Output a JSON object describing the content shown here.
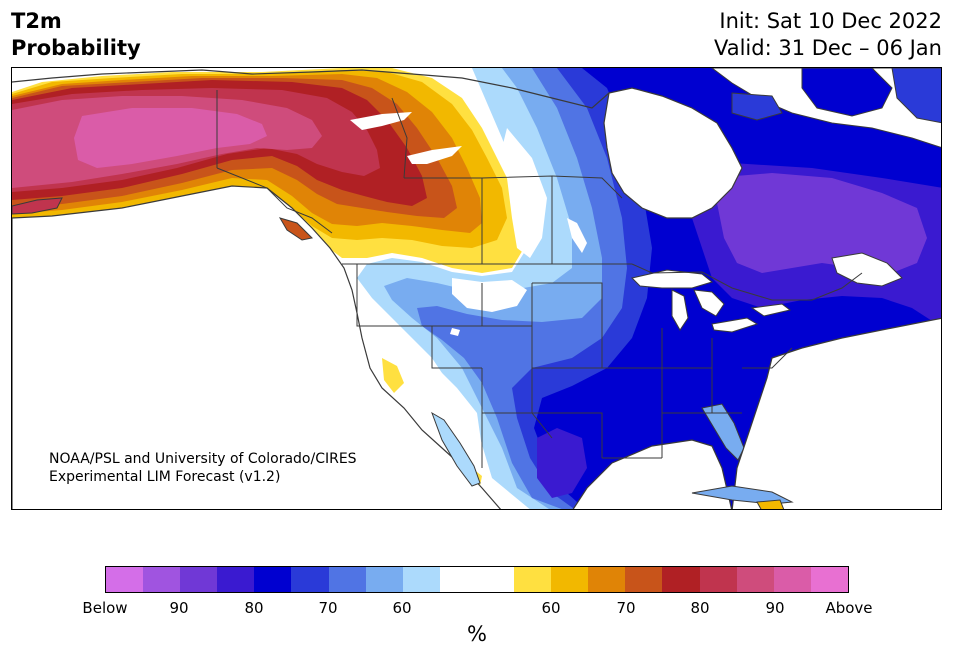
{
  "header": {
    "title_line1": "T2m",
    "title_line2": "Probability",
    "init": "Init: Sat 10 Dec 2022",
    "valid": "Valid: 31 Dec – 06 Jan"
  },
  "map": {
    "credit_line1": "NOAA/PSL and University of Colorado/CIRES",
    "credit_line2": "Experimental LIM Forecast (v1.2)"
  },
  "colorbar": {
    "colors": [
      "#d46ee8",
      "#a054e0",
      "#7038d6",
      "#3a1ad0",
      "#0000d0",
      "#2a3ad8",
      "#5074e4",
      "#78acf0",
      "#acdafc",
      "#ffffff",
      "#ffffff",
      "#ffe040",
      "#f2b800",
      "#e08406",
      "#c8541a",
      "#b02024",
      "#c0344e",
      "#cf4c7c",
      "#da5ca8",
      "#e870d2"
    ],
    "ticks": [
      "Below",
      "90",
      "80",
      "70",
      "60",
      "60",
      "70",
      "80",
      "90",
      "Above"
    ],
    "unit": "%"
  }
}
